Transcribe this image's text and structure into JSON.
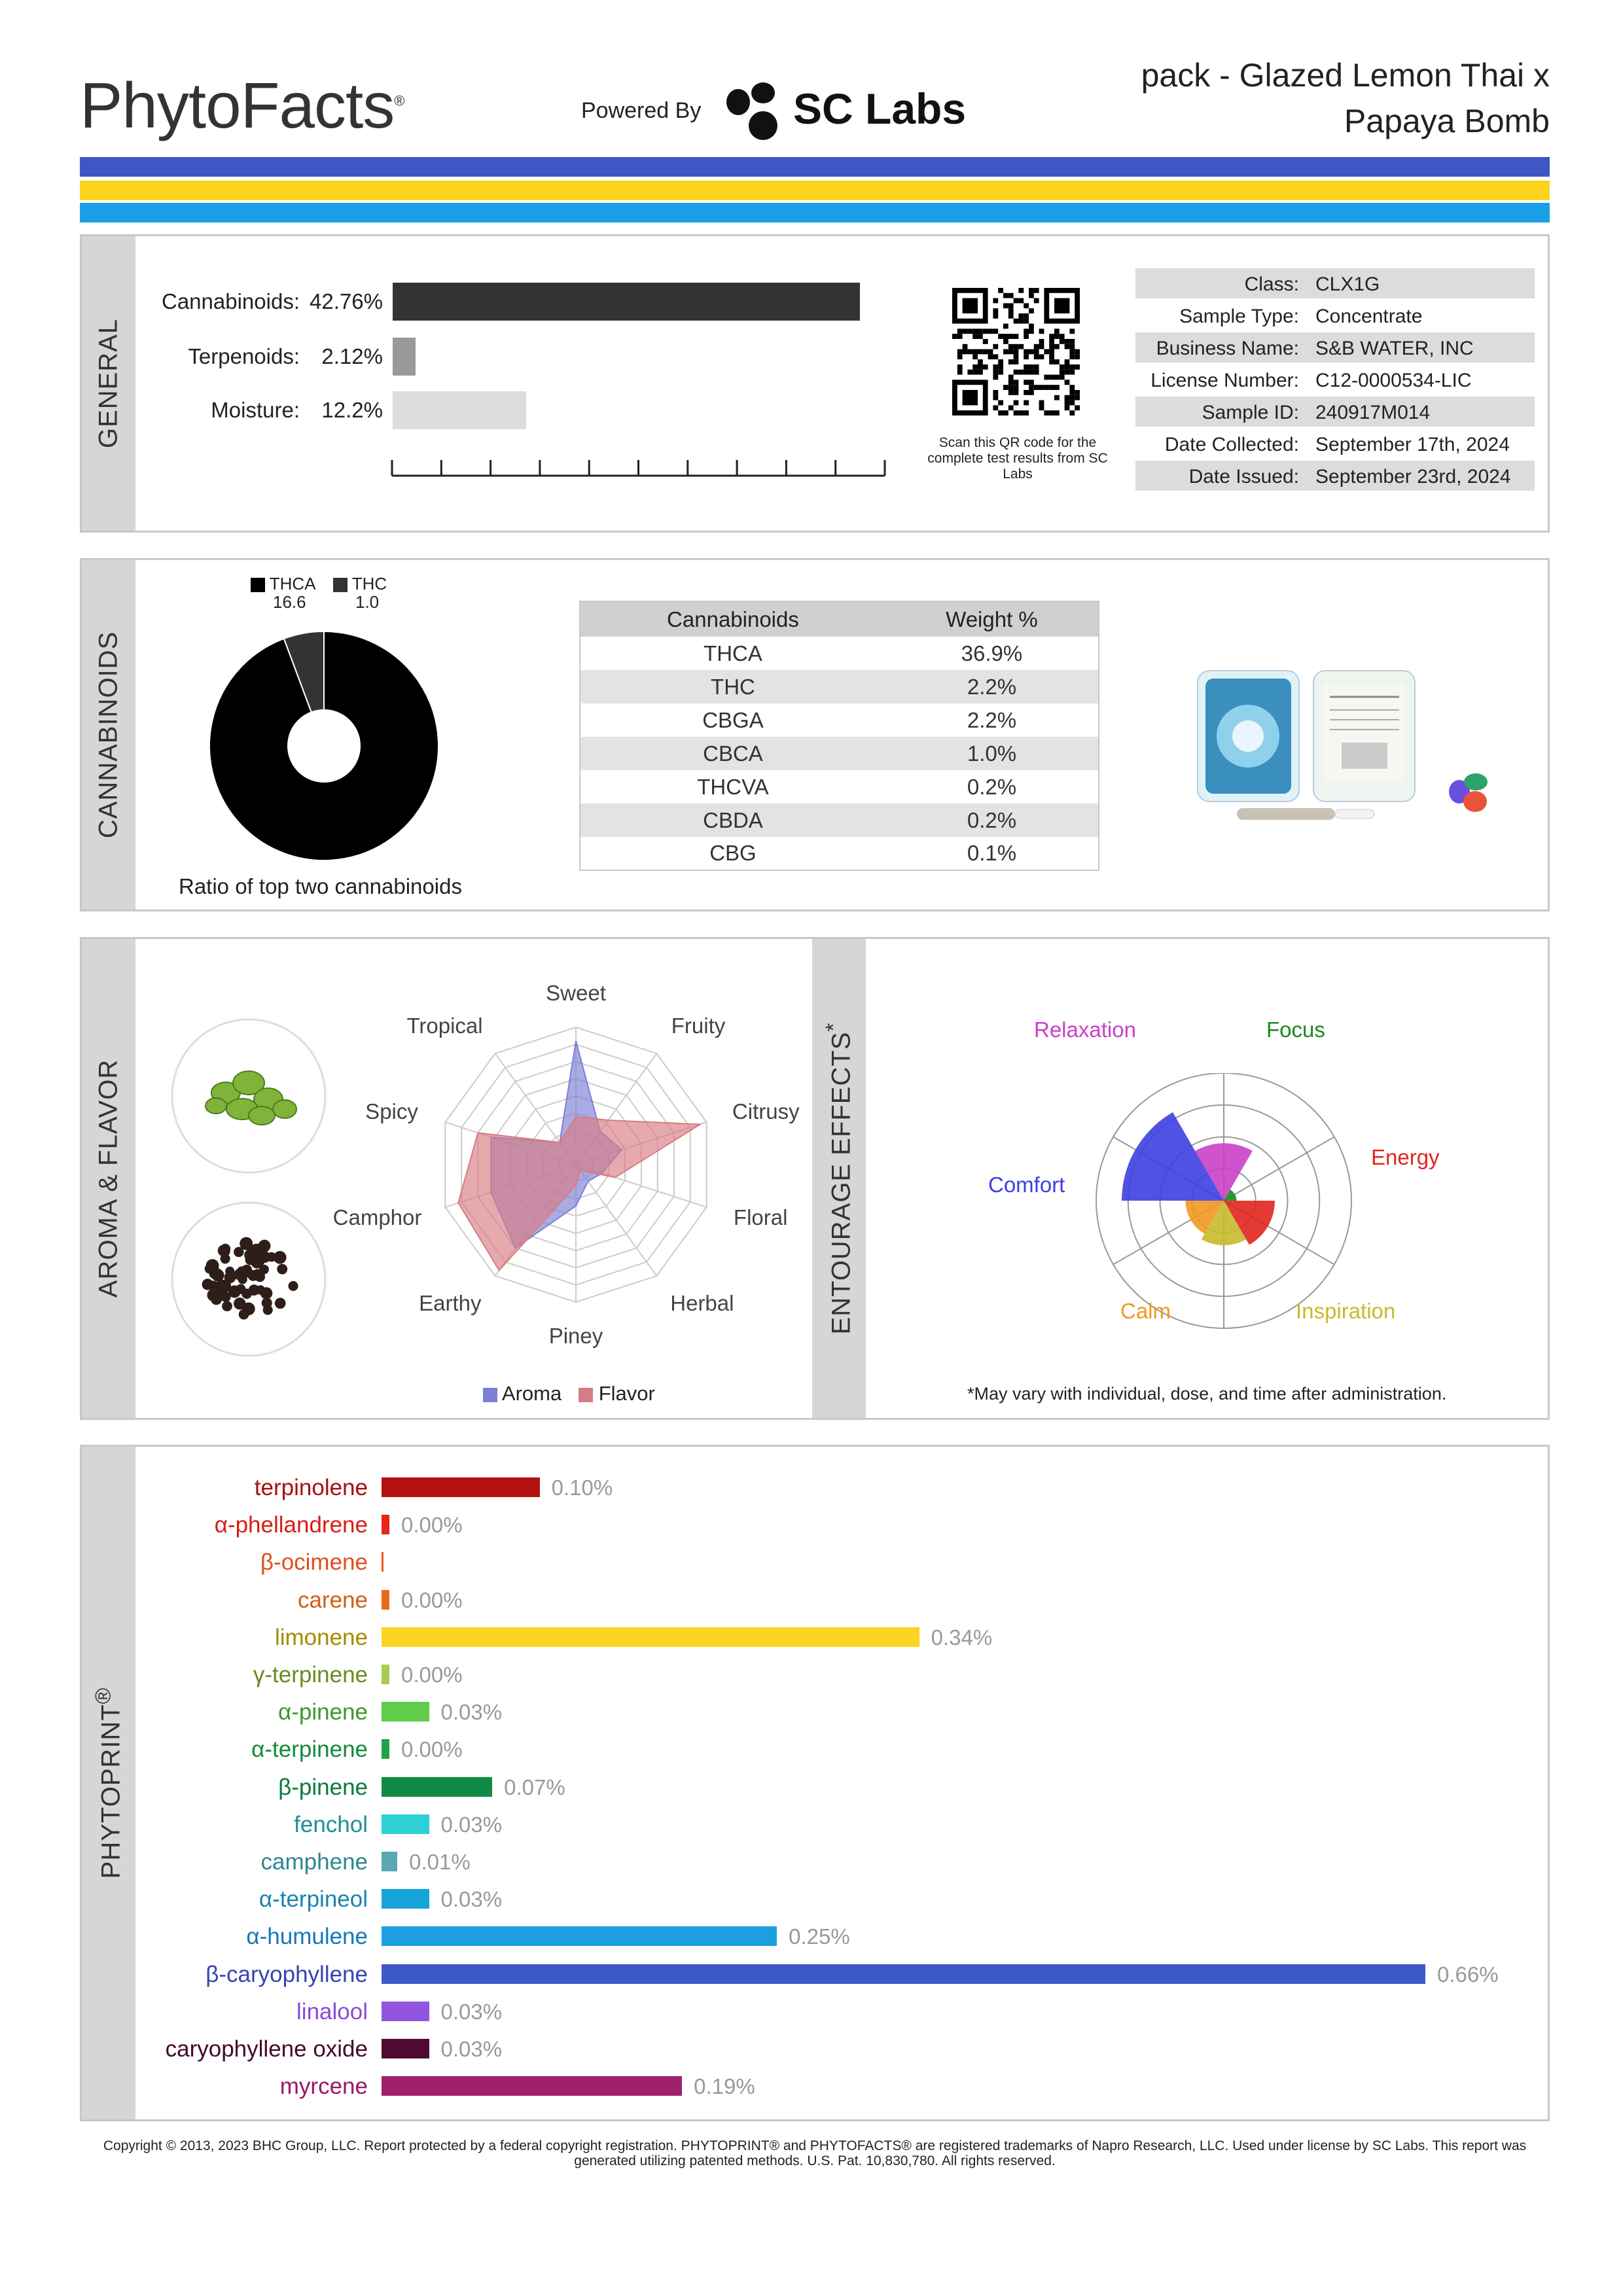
{
  "header": {
    "brand": "PhytoFacts",
    "brand_mark": "®",
    "powered_by": "Powered By",
    "lab": "SC Labs",
    "title_line1": "pack - Glazed Lemon Thai x",
    "title_line2": "Papaya Bomb",
    "stripe_colors": [
      "#3e57c4",
      "#fcd31d",
      "#1aa0e6"
    ]
  },
  "general": {
    "section_label": "GENERAL",
    "rows": [
      {
        "label": "Cannabinoids:",
        "value": "42.76%",
        "pct": 42.76,
        "color": "#333333"
      },
      {
        "label": "Terpenoids:",
        "value": "2.12%",
        "pct": 2.12,
        "color": "#999999"
      },
      {
        "label": "Moisture:",
        "value": "12.2%",
        "pct": 12.2,
        "color": "#dddddd"
      }
    ],
    "qr_caption": "Scan this QR code for the complete test results from SC Labs",
    "details": [
      {
        "key": "Class:",
        "value": "CLX1G"
      },
      {
        "key": "Sample Type:",
        "value": "Concentrate"
      },
      {
        "key": "Business Name:",
        "value": "S&B WATER, INC"
      },
      {
        "key": "License Number:",
        "value": "C12-0000534-LIC"
      },
      {
        "key": "Sample ID:",
        "value": "240917M014"
      },
      {
        "key": "Date Collected:",
        "value": "September 17th, 2024"
      },
      {
        "key": "Date Issued:",
        "value": "September 23rd, 2024"
      }
    ]
  },
  "cannabinoids": {
    "section_label": "CANNABINOIDS",
    "legend": [
      {
        "name": "THCA",
        "value": "16.6",
        "color": "#000000"
      },
      {
        "name": "THC",
        "value": "1.0",
        "color": "#333333"
      }
    ],
    "donut_caption": "Ratio of top two cannabinoids",
    "table_headers": [
      "Cannabinoids",
      "Weight %"
    ],
    "table_rows": [
      [
        "THCA",
        "36.9%"
      ],
      [
        "THC",
        "2.2%"
      ],
      [
        "CBGA",
        "2.2%"
      ],
      [
        "CBCA",
        "1.0%"
      ],
      [
        "THCVA",
        "0.2%"
      ],
      [
        "CBDA",
        "0.2%"
      ],
      [
        "CBG",
        "0.1%"
      ]
    ]
  },
  "aroma": {
    "section_label": "AROMA & FLAVOR",
    "axes": [
      "Sweet",
      "Fruity",
      "Citrusy",
      "Floral",
      "Herbal",
      "Piney",
      "Earthy",
      "Camphor",
      "Spicy",
      "Tropical"
    ],
    "aroma_values": [
      0.9,
      0.3,
      0.35,
      0.2,
      0.15,
      0.3,
      0.75,
      0.65,
      0.65,
      0.2
    ],
    "flavor_values": [
      0.35,
      0.4,
      0.95,
      0.3,
      0.05,
      0.15,
      0.95,
      0.9,
      0.75,
      0.2
    ],
    "legend": [
      {
        "name": "Aroma",
        "color": "#7b80d6"
      },
      {
        "name": "Flavor",
        "color": "#d87c83"
      }
    ]
  },
  "entourage": {
    "section_label": "ENTOURAGE EFFECTS",
    "section_mark": "*",
    "effects": [
      {
        "name": "Relaxation",
        "value": 0.45,
        "color": "#c940c8"
      },
      {
        "name": "Focus",
        "value": 0.1,
        "color": "#1b8a1b"
      },
      {
        "name": "Energy",
        "value": 0.4,
        "color": "#e0251d"
      },
      {
        "name": "Inspiration",
        "value": 0.35,
        "color": "#c9b92c"
      },
      {
        "name": "Calm",
        "value": 0.3,
        "color": "#f19821"
      },
      {
        "name": "Comfort",
        "value": 0.8,
        "color": "#3c3fe0"
      }
    ],
    "note": "*May vary with individual, dose, and time after administration."
  },
  "phytoprint": {
    "section_label": "PHYTOPRINT",
    "section_mark": "®",
    "terpenes": [
      {
        "name": "terpinolene",
        "value": "0.10%",
        "pct": 0.1,
        "color": "#b51010"
      },
      {
        "name": "α-phellandrene",
        "value": "0.00%",
        "pct": 0.0,
        "color": "#e8241d"
      },
      {
        "name": "β-ocimene",
        "value": "",
        "pct": 0.0,
        "color": "#ef5a1f"
      },
      {
        "name": "carene",
        "value": "0.00%",
        "pct": 0.0,
        "color": "#e86a21"
      },
      {
        "name": "limonene",
        "value": "0.34%",
        "pct": 0.34,
        "color": "#fbd520"
      },
      {
        "name": "γ-terpinene",
        "value": "0.00%",
        "pct": 0.0,
        "color": "#a6cc55"
      },
      {
        "name": "α-pinene",
        "value": "0.03%",
        "pct": 0.03,
        "color": "#5fcc4a"
      },
      {
        "name": "α-terpinene",
        "value": "0.00%",
        "pct": 0.0,
        "color": "#1fa34a"
      },
      {
        "name": "β-pinene",
        "value": "0.07%",
        "pct": 0.07,
        "color": "#108a46"
      },
      {
        "name": "fenchol",
        "value": "0.03%",
        "pct": 0.03,
        "color": "#2ed0d6"
      },
      {
        "name": "camphene",
        "value": "0.01%",
        "pct": 0.01,
        "color": "#5aa8b4"
      },
      {
        "name": "α-terpineol",
        "value": "0.03%",
        "pct": 0.03,
        "color": "#15a4d8"
      },
      {
        "name": "α-humulene",
        "value": "0.25%",
        "pct": 0.25,
        "color": "#1b9fe0"
      },
      {
        "name": "β-caryophyllene",
        "value": "0.66%",
        "pct": 0.66,
        "color": "#3d59c8"
      },
      {
        "name": "linalool",
        "value": "0.03%",
        "pct": 0.03,
        "color": "#9255e0"
      },
      {
        "name": "caryophyllene oxide",
        "value": "0.03%",
        "pct": 0.03,
        "color": "#4e0a33"
      },
      {
        "name": "myrcene",
        "value": "0.19%",
        "pct": 0.19,
        "color": "#a0206e"
      }
    ],
    "name_colors": [
      "#a80f0f",
      "#d81e18",
      "#e04f1c",
      "#d06018",
      "#a38c00",
      "#6c8a22",
      "#3f9630",
      "#138a3a",
      "#0a7a3a",
      "#1c8f96",
      "#2f8791",
      "#1684b3",
      "#1579b8",
      "#3445b0",
      "#8a4ad6",
      "#45082c",
      "#98186a"
    ]
  },
  "footer": "Copyright © 2013, 2023 BHC Group, LLC. Report protected by a federal copyright registration. PHYTOPRINT® and PHYTOFACTS® are registered trademarks of Napro Research, LLC. Used under license by SC Labs. This report was generated utilizing patented methods. U.S. Pat. 10,830,780. All rights reserved."
}
